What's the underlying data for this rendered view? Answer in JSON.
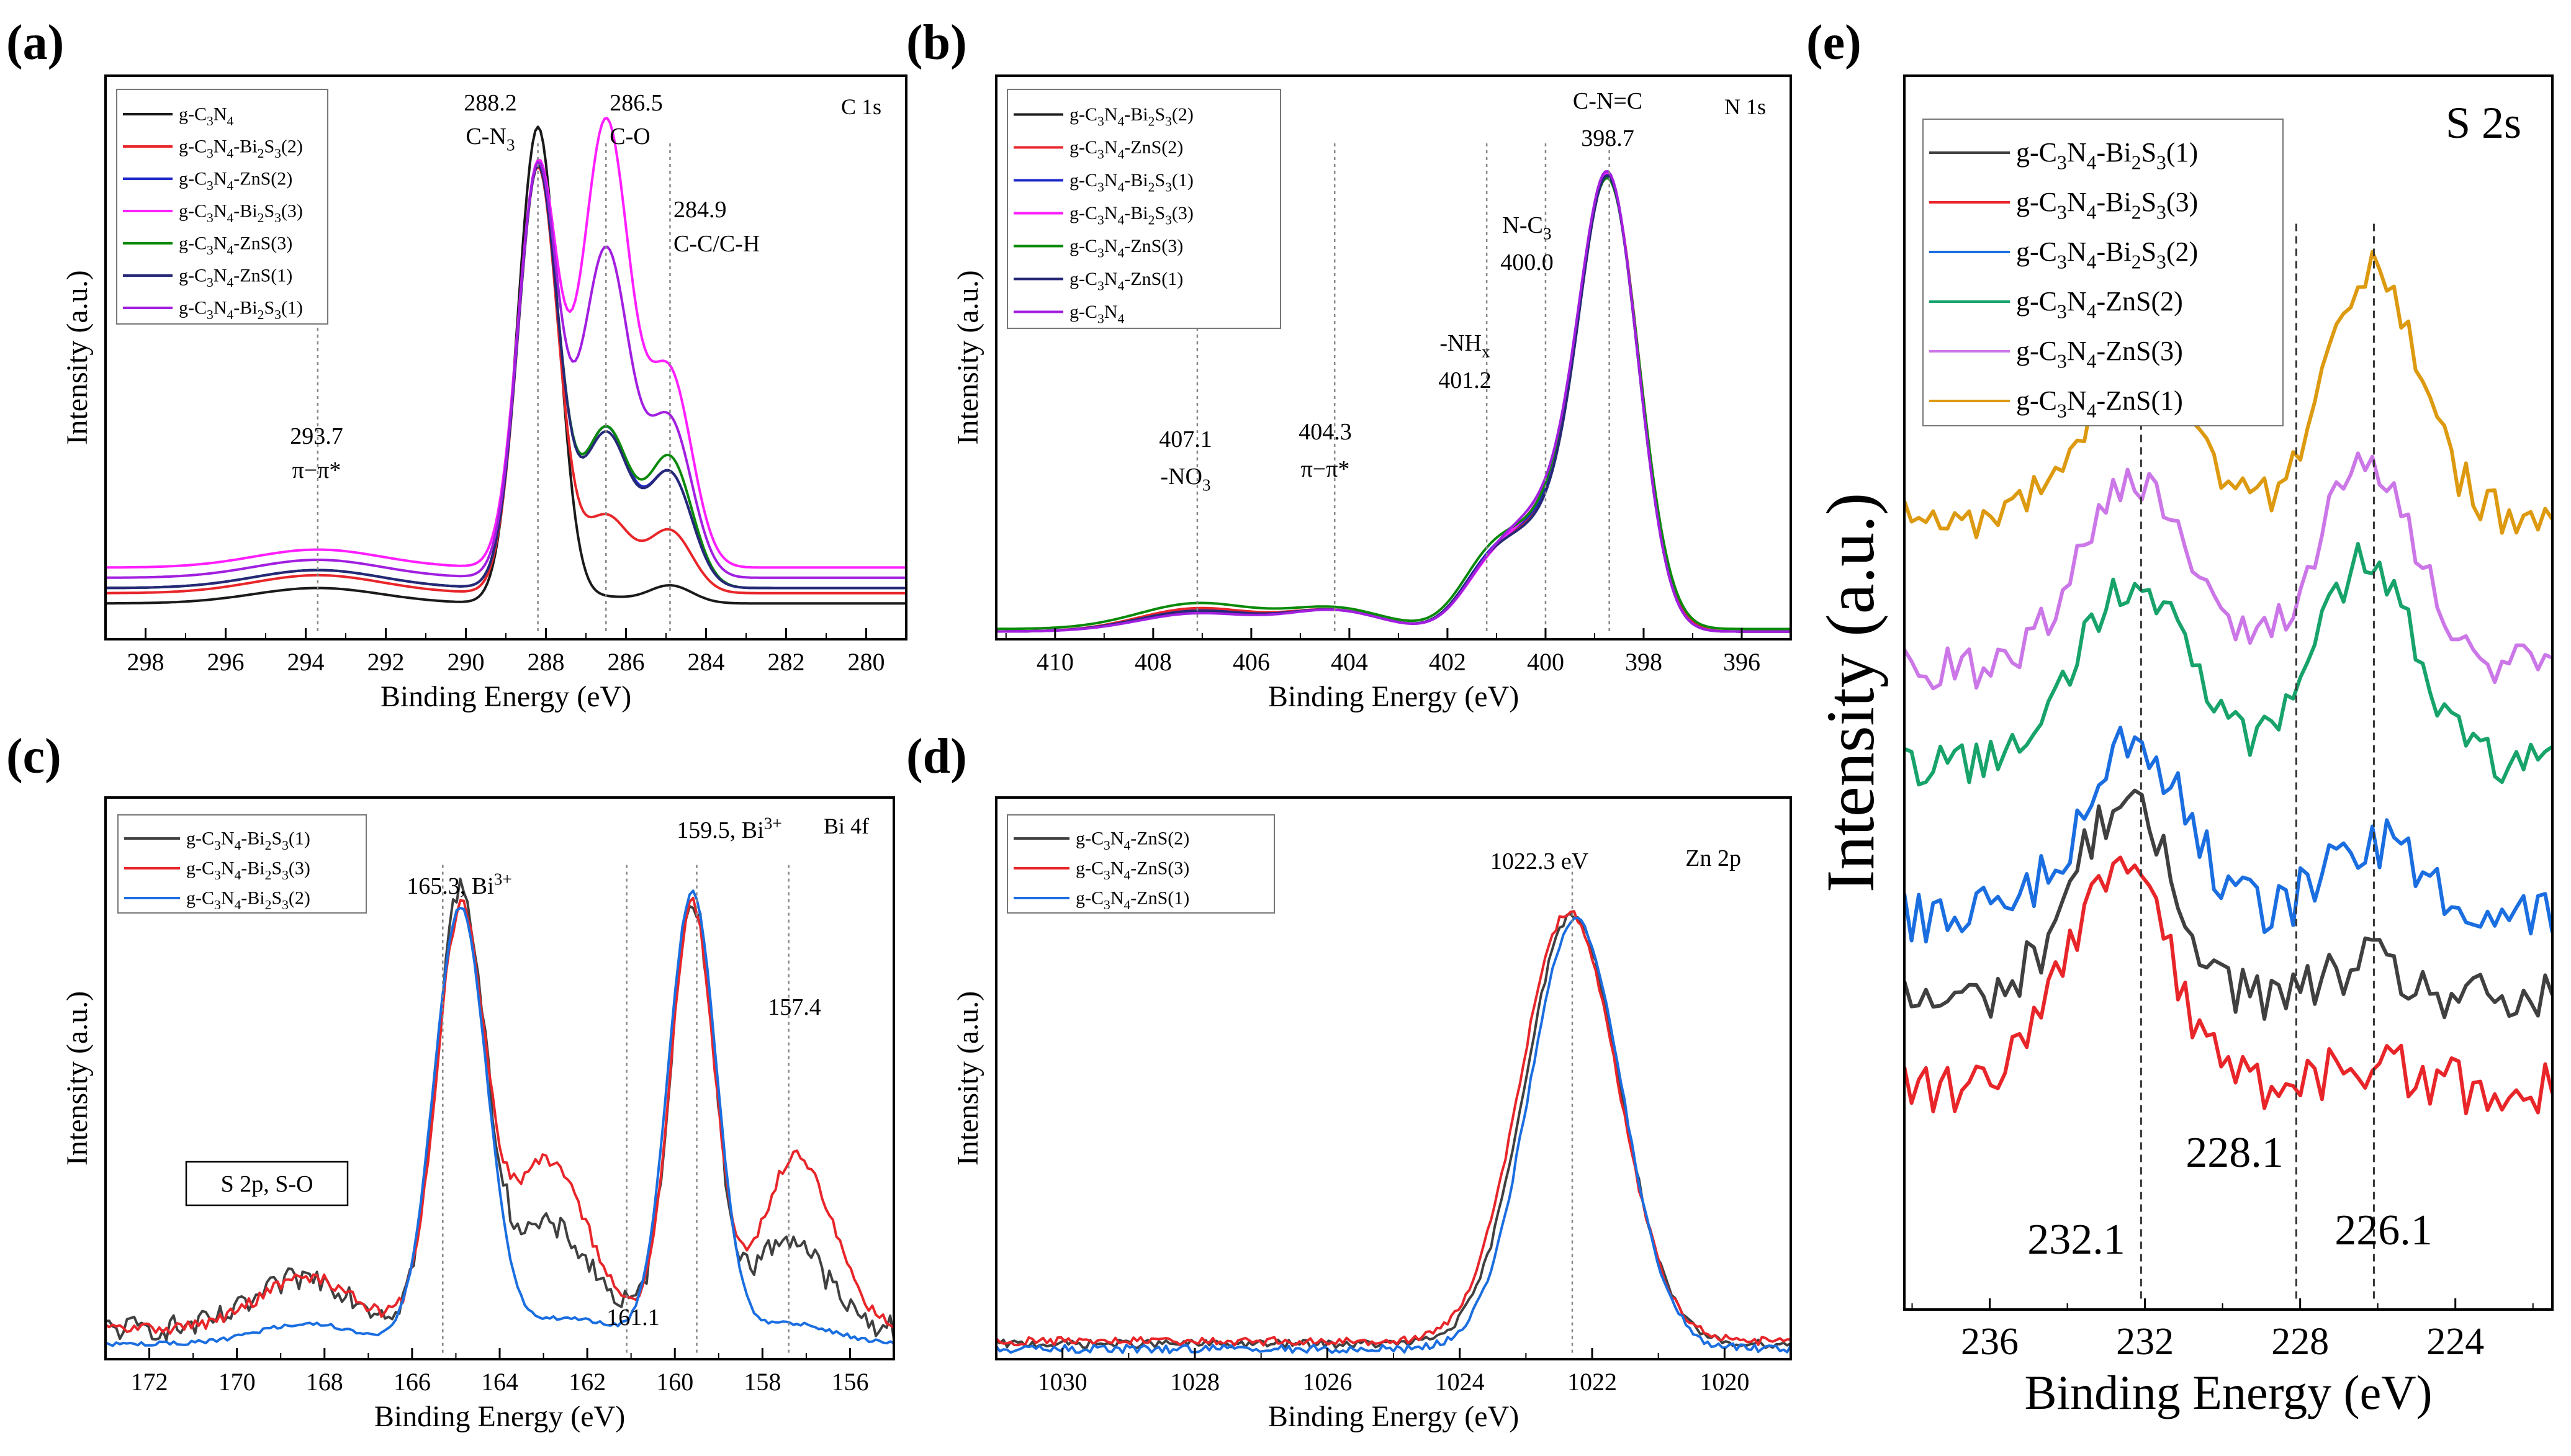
{
  "figure": {
    "colors": {
      "black": "#1a1a1a",
      "red": "#e8262a",
      "blue": "#1f28c8",
      "magenta": "#ff1fff",
      "green": "#0a8a0a",
      "navy": "#262878",
      "purple": "#a21fe0",
      "skyblue": "#1a6ee0",
      "gray": "#404040",
      "teal": "#17a36a",
      "lilac": "#cc77e8",
      "gold": "#dd9a10"
    }
  },
  "chart_data": [
    {
      "id": "a",
      "type": "line",
      "panel_label": "(a)",
      "title": "C 1s",
      "xlabel": "Binding Energy (eV)",
      "ylabel": "Intensity (a.u.)",
      "xlim": [
        299,
        279
      ],
      "ylim": [
        0,
        1.1
      ],
      "xticks": [
        298,
        296,
        294,
        292,
        290,
        288,
        286,
        284,
        282,
        280
      ],
      "tick_labels": [
        "298",
        "296",
        "294",
        "292",
        "290",
        "288",
        "286",
        "284",
        "282",
        "280"
      ],
      "legend": [
        "g-C3N4",
        "g-C3N4-Bi2S3(2)",
        "g-C3N4-ZnS(2)",
        "g-C3N4-Bi2S3(3)",
        "g-C3N4-ZnS(3)",
        "g-C3N4-ZnS(1)",
        "g-C3N4-Bi2S3(1)"
      ],
      "legend_position": "top-left",
      "annotations": [
        {
          "x": 293.7,
          "text": [
            "293.7",
            "π−π*"
          ]
        },
        {
          "x": 288.2,
          "text": [
            "288.2",
            "C-N3"
          ]
        },
        {
          "x": 286.5,
          "text": [
            "286.5",
            "C-O"
          ]
        },
        {
          "x": 284.9,
          "text": [
            "284.9",
            "C-C/C-H"
          ]
        }
      ],
      "series": [
        {
          "name": "g-C3N4",
          "color": "black",
          "base": 0.07,
          "peaks": [
            [
              288.2,
              0.93,
              0.5
            ],
            [
              286.5,
              0.012,
              0.6
            ],
            [
              284.9,
              0.035,
              0.55
            ],
            [
              293.7,
              0.03,
              1.6
            ]
          ]
        },
        {
          "name": "g-C3N4-Bi2S3(2)",
          "color": "red",
          "base": 0.09,
          "peaks": [
            [
              288.2,
              0.83,
              0.5
            ],
            [
              286.5,
              0.15,
              0.6
            ],
            [
              284.9,
              0.12,
              0.55
            ],
            [
              293.7,
              0.035,
              1.6
            ]
          ]
        },
        {
          "name": "g-C3N4-ZnS(2)",
          "color": "blue",
          "base": 0.1,
          "peaks": [
            [
              288.2,
              0.82,
              0.5
            ],
            [
              286.5,
              0.31,
              0.6
            ],
            [
              284.9,
              0.22,
              0.55
            ],
            [
              293.7,
              0.035,
              1.6
            ]
          ]
        },
        {
          "name": "g-C3N4-Bi2S3(3)",
          "color": "magenta",
          "base": 0.14,
          "peaks": [
            [
              288.2,
              0.78,
              0.5
            ],
            [
              286.5,
              0.87,
              0.6
            ],
            [
              284.9,
              0.37,
              0.55
            ],
            [
              293.7,
              0.035,
              1.6
            ]
          ]
        },
        {
          "name": "g-C3N4-ZnS(3)",
          "color": "green",
          "base": 0.1,
          "peaks": [
            [
              288.2,
              0.82,
              0.5
            ],
            [
              286.5,
              0.31,
              0.6
            ],
            [
              284.9,
              0.25,
              0.55
            ],
            [
              293.7,
              0.035,
              1.6
            ]
          ]
        },
        {
          "name": "g-C3N4-ZnS(1)",
          "color": "navy",
          "base": 0.1,
          "peaks": [
            [
              288.2,
              0.82,
              0.5
            ],
            [
              286.5,
              0.3,
              0.6
            ],
            [
              284.9,
              0.22,
              0.55
            ],
            [
              293.7,
              0.035,
              1.6
            ]
          ]
        },
        {
          "name": "g-C3N4-Bi2S3(1)",
          "color": "purple",
          "base": 0.12,
          "peaks": [
            [
              288.2,
              0.8,
              0.5
            ],
            [
              286.5,
              0.64,
              0.6
            ],
            [
              284.9,
              0.3,
              0.55
            ],
            [
              293.7,
              0.035,
              1.6
            ]
          ]
        }
      ]
    },
    {
      "id": "b",
      "type": "line",
      "panel_label": "(b)",
      "title": "N 1s",
      "xlabel": "Binding Energy (eV)",
      "ylabel": "Intensity (a.u.)",
      "xlim": [
        411.2,
        395
      ],
      "ylim": [
        0,
        1.1
      ],
      "xticks": [
        410,
        408,
        406,
        404,
        402,
        400,
        398,
        396
      ],
      "tick_labels": [
        "410",
        "408",
        "406",
        "404",
        "402",
        "400",
        "398",
        "396"
      ],
      "legend": [
        "g-C3N4-Bi2S3(2)",
        "g-C3N4-ZnS(2)",
        "g-C3N4-Bi2S3(1)",
        "g-C3N4-Bi2S3(3)",
        "g-C3N4-ZnS(3)",
        "g-C3N4-ZnS(1)",
        "g-C3N4"
      ],
      "legend_position": "top-left",
      "annotations": [
        {
          "x": 407.1,
          "text": [
            "407.1",
            "-NO3"
          ]
        },
        {
          "x": 404.3,
          "text": [
            "404.3",
            "π−π*"
          ]
        },
        {
          "x": 401.2,
          "text": [
            "-NHx",
            "401.2"
          ]
        },
        {
          "x": 400.0,
          "text": [
            "N-C3",
            "400.0"
          ]
        },
        {
          "x": 398.7,
          "text": [
            "C-N=C",
            "398.7"
          ]
        }
      ],
      "series": [
        {
          "name": "g-C3N4-Bi2S3(2)",
          "color": "black",
          "base": 0.015,
          "peaks": [
            [
              398.7,
              0.84,
              0.6
            ],
            [
              400.0,
              0.18,
              0.8
            ],
            [
              401.2,
              0.09,
              0.6
            ],
            [
              404.3,
              0.04,
              1.0
            ],
            [
              407.1,
              0.04,
              1.2
            ]
          ]
        },
        {
          "name": "g-C3N4-ZnS(2)",
          "color": "red",
          "base": 0.015,
          "peaks": [
            [
              398.7,
              0.84,
              0.62
            ],
            [
              400.0,
              0.18,
              0.8
            ],
            [
              401.2,
              0.09,
              0.6
            ],
            [
              404.3,
              0.04,
              1.0
            ],
            [
              407.1,
              0.045,
              1.2
            ]
          ]
        },
        {
          "name": "g-C3N4-Bi2S3(1)",
          "color": "blue",
          "base": 0.015,
          "peaks": [
            [
              398.7,
              0.84,
              0.6
            ],
            [
              400.0,
              0.19,
              0.8
            ],
            [
              401.2,
              0.09,
              0.6
            ],
            [
              404.3,
              0.04,
              1.0
            ],
            [
              407.1,
              0.04,
              1.2
            ]
          ]
        },
        {
          "name": "g-C3N4-Bi2S3(3)",
          "color": "magenta",
          "base": 0.015,
          "peaks": [
            [
              398.7,
              0.84,
              0.6
            ],
            [
              400.0,
              0.2,
              0.8
            ],
            [
              401.2,
              0.08,
              0.6
            ],
            [
              404.3,
              0.04,
              1.0
            ],
            [
              407.1,
              0.04,
              1.2
            ]
          ]
        },
        {
          "name": "g-C3N4-ZnS(3)",
          "color": "green",
          "base": 0.02,
          "peaks": [
            [
              398.7,
              0.83,
              0.62
            ],
            [
              400.0,
              0.18,
              0.8
            ],
            [
              401.2,
              0.1,
              0.6
            ],
            [
              404.3,
              0.04,
              1.0
            ],
            [
              407.1,
              0.05,
              1.2
            ]
          ]
        },
        {
          "name": "g-C3N4-ZnS(1)",
          "color": "navy",
          "base": 0.015,
          "peaks": [
            [
              398.7,
              0.84,
              0.6
            ],
            [
              400.0,
              0.18,
              0.8
            ],
            [
              401.2,
              0.09,
              0.6
            ],
            [
              404.3,
              0.04,
              1.0
            ],
            [
              407.1,
              0.04,
              1.2
            ]
          ]
        },
        {
          "name": "g-C3N4",
          "color": "purple",
          "base": 0.015,
          "peaks": [
            [
              398.7,
              0.84,
              0.6
            ],
            [
              400.0,
              0.21,
              0.8
            ],
            [
              401.2,
              0.08,
              0.6
            ],
            [
              404.3,
              0.04,
              1.0
            ],
            [
              407.1,
              0.035,
              1.2
            ]
          ]
        }
      ]
    },
    {
      "id": "c",
      "type": "line",
      "panel_label": "(c)",
      "title": "Bi 4f",
      "xlabel": "Binding Energy (eV)",
      "ylabel": "Intensity (a.u.)",
      "xlim": [
        173,
        155
      ],
      "ylim": [
        0,
        1.1
      ],
      "xticks": [
        172,
        170,
        168,
        166,
        164,
        162,
        160,
        158,
        156
      ],
      "tick_labels": [
        "172",
        "170",
        "168",
        "166",
        "164",
        "162",
        "160",
        "158",
        "156"
      ],
      "legend": [
        "g-C3N4-Bi2S3(1)",
        "g-C3N4-Bi2S3(3)",
        "g-C3N4-Bi2S3(2)"
      ],
      "legend_position": "top-left",
      "annotations": [
        {
          "x": 165.3,
          "text": [
            "165.3, Bi3+"
          ]
        },
        {
          "x": 159.5,
          "text": [
            "159.5, Bi3+"
          ]
        },
        {
          "x": 157.4,
          "text": [
            "157.4"
          ]
        },
        {
          "x": 161.1,
          "text": [
            "161.1"
          ]
        },
        {
          "x": 169.0,
          "text": [
            "S 2p, S-O"
          ],
          "boxed": true
        }
      ],
      "series": [
        {
          "name": "g-C3N4-Bi2S3(1)",
          "color": "gray",
          "base": 0.06,
          "noise": 0.025,
          "peaks": [
            [
              164.9,
              0.84,
              0.55
            ],
            [
              159.6,
              0.84,
              0.5
            ],
            [
              168.4,
              0.1,
              1.1
            ],
            [
              162.9,
              0.2,
              1.0
            ],
            [
              157.4,
              0.18,
              0.8
            ]
          ]
        },
        {
          "name": "g-C3N4-Bi2S3(3)",
          "color": "red",
          "base": 0.06,
          "noise": 0.012,
          "peaks": [
            [
              164.9,
              0.8,
              0.55
            ],
            [
              159.6,
              0.83,
              0.5
            ],
            [
              168.4,
              0.1,
              1.1
            ],
            [
              162.9,
              0.33,
              0.9
            ],
            [
              157.2,
              0.34,
              0.8
            ]
          ]
        },
        {
          "name": "g-C3N4-Bi2S3(2)",
          "color": "skyblue",
          "base": 0.03,
          "noise": 0.004,
          "peaks": [
            [
              164.9,
              0.85,
              0.6
            ],
            [
              159.6,
              0.88,
              0.55
            ],
            [
              168.4,
              0.04,
              1.1
            ],
            [
              162.5,
              0.05,
              1.2
            ],
            [
              157.4,
              0.04,
              1.0
            ]
          ]
        }
      ]
    },
    {
      "id": "d",
      "type": "line",
      "panel_label": "(d)",
      "title": "Zn 2p",
      "xlabel": "Binding Energy (eV)",
      "ylabel": "Intensity (a.u.)",
      "xlim": [
        1031,
        1019
      ],
      "ylim": [
        0,
        1.1
      ],
      "xticks": [
        1030,
        1028,
        1026,
        1024,
        1022,
        1020
      ],
      "tick_labels": [
        "1030",
        "1028",
        "1026",
        "1024",
        "1022",
        "1020"
      ],
      "legend": [
        "g-C3N4-ZnS(2)",
        "g-C3N4-ZnS(3)",
        "g-C3N4-ZnS(1)"
      ],
      "legend_position": "top-left",
      "annotations": [
        {
          "x": 1022.3,
          "text": [
            "1022.3 eV"
          ]
        }
      ],
      "series": [
        {
          "name": "g-C3N4-ZnS(2)",
          "color": "gray",
          "base": 0.03,
          "noise": 0.008,
          "peaks": [
            [
              1022.3,
              0.84,
              0.72
            ]
          ]
        },
        {
          "name": "g-C3N4-ZnS(3)",
          "color": "red",
          "base": 0.035,
          "noise": 0.008,
          "peaks": [
            [
              1022.35,
              0.84,
              0.74
            ]
          ]
        },
        {
          "name": "g-C3N4-ZnS(1)",
          "color": "skyblue",
          "base": 0.02,
          "noise": 0.008,
          "peaks": [
            [
              1022.25,
              0.84,
              0.7
            ]
          ]
        }
      ]
    },
    {
      "id": "e",
      "type": "line",
      "panel_label": "(e)",
      "title": "S 2s",
      "xlabel": "Binding Energy (eV)",
      "ylabel": "Intensity  (a.u.)",
      "xlim": [
        238.2,
        221.5
      ],
      "ylim": [
        0,
        1
      ],
      "xticks": [
        236,
        232,
        228,
        224
      ],
      "tick_labels": [
        "236",
        "232",
        "228",
        "224"
      ],
      "legend": [
        "g-C3N4-Bi2S3(1)",
        "g-C3N4-Bi2S3(3)",
        "g-C3N4-Bi2S3(2)",
        "g-C3N4-ZnS(2)",
        "g-C3N4-ZnS(3)",
        "g-C3N4-ZnS(1)"
      ],
      "legend_position": "top-left",
      "annotations": [
        {
          "x": 232.1,
          "text": [
            "232.1"
          ]
        },
        {
          "x": 228.1,
          "text": [
            "228.1"
          ]
        },
        {
          "x": 226.1,
          "text": [
            "226.1"
          ]
        }
      ],
      "series": [
        {
          "name": "g-C3N4-Bi2S3(1)",
          "color": "gray",
          "base": 0.25,
          "noise": 0.022,
          "peaks": [
            [
              232.6,
              0.16,
              1.3
            ],
            [
              226.3,
              0.03,
              1.0
            ]
          ]
        },
        {
          "name": "g-C3N4-Bi2S3(3)",
          "color": "red",
          "base": 0.18,
          "noise": 0.022,
          "peaks": [
            [
              232.7,
              0.18,
              1.3
            ],
            [
              226.3,
              0.02,
              1.0
            ]
          ]
        },
        {
          "name": "g-C3N4-Bi2S3(2)",
          "color": "skyblue",
          "base": 0.32,
          "noise": 0.022,
          "peaks": [
            [
              232.3,
              0.14,
              1.3
            ],
            [
              226.2,
              0.06,
              1.1
            ]
          ]
        },
        {
          "name": "g-C3N4-ZnS(2)",
          "color": "teal",
          "base": 0.44,
          "noise": 0.018,
          "peaks": [
            [
              232.3,
              0.15,
              1.4
            ],
            [
              226.3,
              0.17,
              1.2
            ]
          ]
        },
        {
          "name": "g-C3N4-ZnS(3)",
          "color": "lilac",
          "base": 0.52,
          "noise": 0.018,
          "peaks": [
            [
              232.2,
              0.15,
              1.4
            ],
            [
              226.3,
              0.17,
              1.2
            ]
          ]
        },
        {
          "name": "g-C3N4-ZnS(1)",
          "color": "gold",
          "base": 0.64,
          "noise": 0.018,
          "peaks": [
            [
              232.2,
              0.11,
              1.4
            ],
            [
              226.1,
              0.2,
              1.2
            ]
          ]
        }
      ]
    }
  ]
}
